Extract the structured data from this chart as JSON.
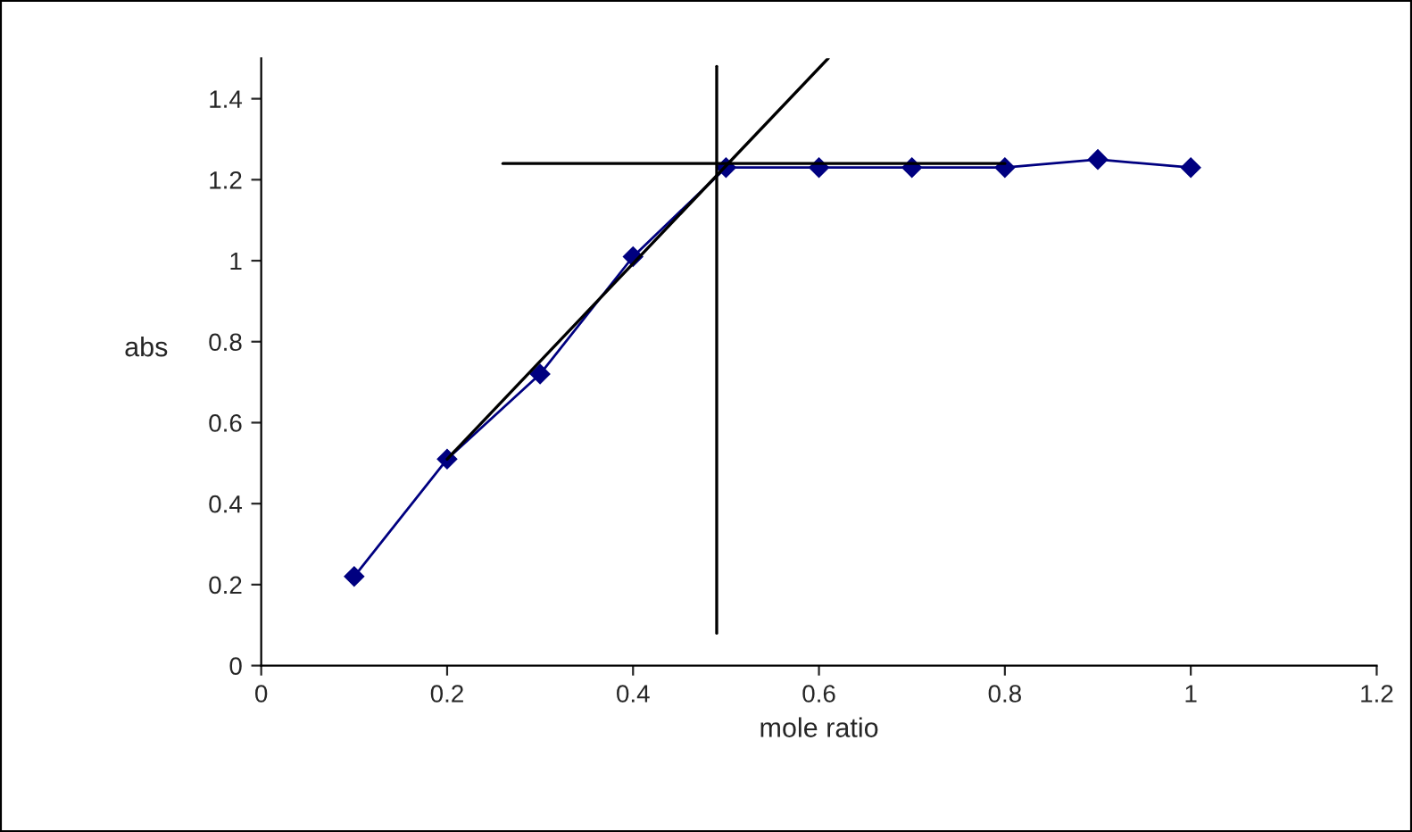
{
  "chart_data": {
    "type": "line",
    "xlabel": "mole ratio",
    "ylabel": "abs",
    "xlim": [
      0,
      1.2
    ],
    "xticks": [
      0,
      0.2,
      0.4,
      0.6,
      0.8,
      1,
      1.2
    ],
    "ylim": [
      0,
      1.5
    ],
    "yticks": [
      0,
      0.2,
      0.4,
      0.6,
      0.8,
      1,
      1.2,
      1.4
    ],
    "grid": false,
    "legend": false,
    "marker": "diamond",
    "line_style": "solid",
    "series": [
      {
        "color": "#000080",
        "x": [
          0.1,
          0.2,
          0.3,
          0.4,
          0.5,
          0.6,
          0.7,
          0.8,
          0.9,
          1.0
        ],
        "values": [
          0.22,
          0.51,
          0.72,
          1.01,
          1.23,
          1.23,
          1.23,
          1.23,
          1.25,
          1.23
        ]
      },
      {
        "type": "line",
        "color": "#000000",
        "marker": "none",
        "x": [
          0.2,
          0.61
        ],
        "values": [
          0.51,
          1.5
        ]
      },
      {
        "type": "line",
        "color": "#000000",
        "marker": "none",
        "x": [
          0.26,
          0.8
        ],
        "values": [
          1.24,
          1.24
        ]
      },
      {
        "type": "line",
        "color": "#000000",
        "marker": "none",
        "x": [
          0.49,
          0.49
        ],
        "values": [
          0.08,
          1.48
        ]
      }
    ]
  }
}
